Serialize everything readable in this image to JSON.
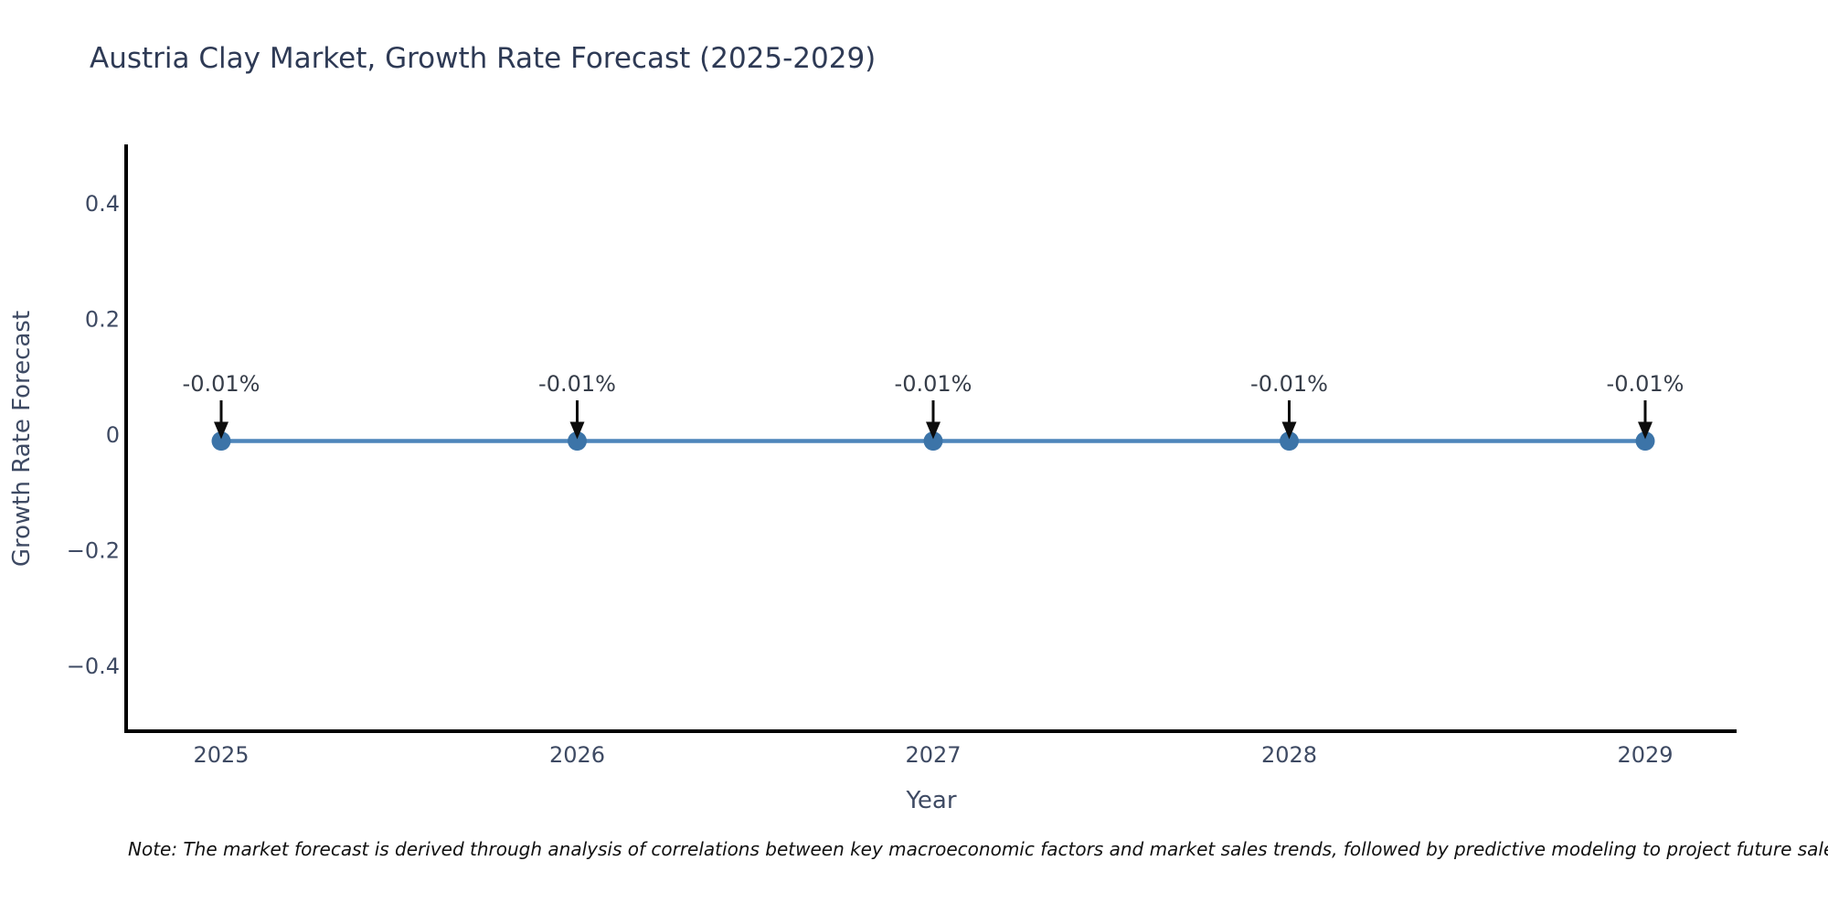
{
  "page": {
    "background": "#ffffff",
    "note": "Note: The market forecast is derived through analysis of correlations between key macroeconomic factors and market sales trends, followed by predictive modeling to project future sales."
  },
  "chart_data": {
    "type": "line",
    "title": "Austria Clay Market, Growth Rate Forecast (2025-2029)",
    "xlabel": "Year",
    "ylabel": "Growth Rate Forecast",
    "categories": [
      "2025",
      "2026",
      "2027",
      "2028",
      "2029"
    ],
    "series": [
      {
        "name": "Growth Rate Forecast",
        "values": [
          -0.01,
          -0.01,
          -0.01,
          -0.01,
          -0.01
        ]
      }
    ],
    "point_labels": [
      "-0.01%",
      "-0.01%",
      "-0.01%",
      "-0.01%",
      "-0.01%"
    ],
    "ytick_values": [
      0.4,
      0.2,
      0,
      -0.2,
      -0.4
    ],
    "ytick_labels": [
      "0.4",
      "0.2",
      "0",
      "−0.2",
      "−0.4"
    ],
    "ylim": [
      -0.512,
      0.5
    ],
    "grid": false,
    "legend_position": "none",
    "annotations_have_arrows": true,
    "colors": {
      "line": "#4e86bb",
      "marker": "#3c74a8",
      "annotation_text": "#363d49",
      "arrow": "#0d0d0d",
      "axis": "#000000",
      "tick_text": "#3e4a63",
      "axis_title_text": "#3e4a63",
      "title_text": "#2e3a55",
      "note_text": "#111111"
    }
  }
}
